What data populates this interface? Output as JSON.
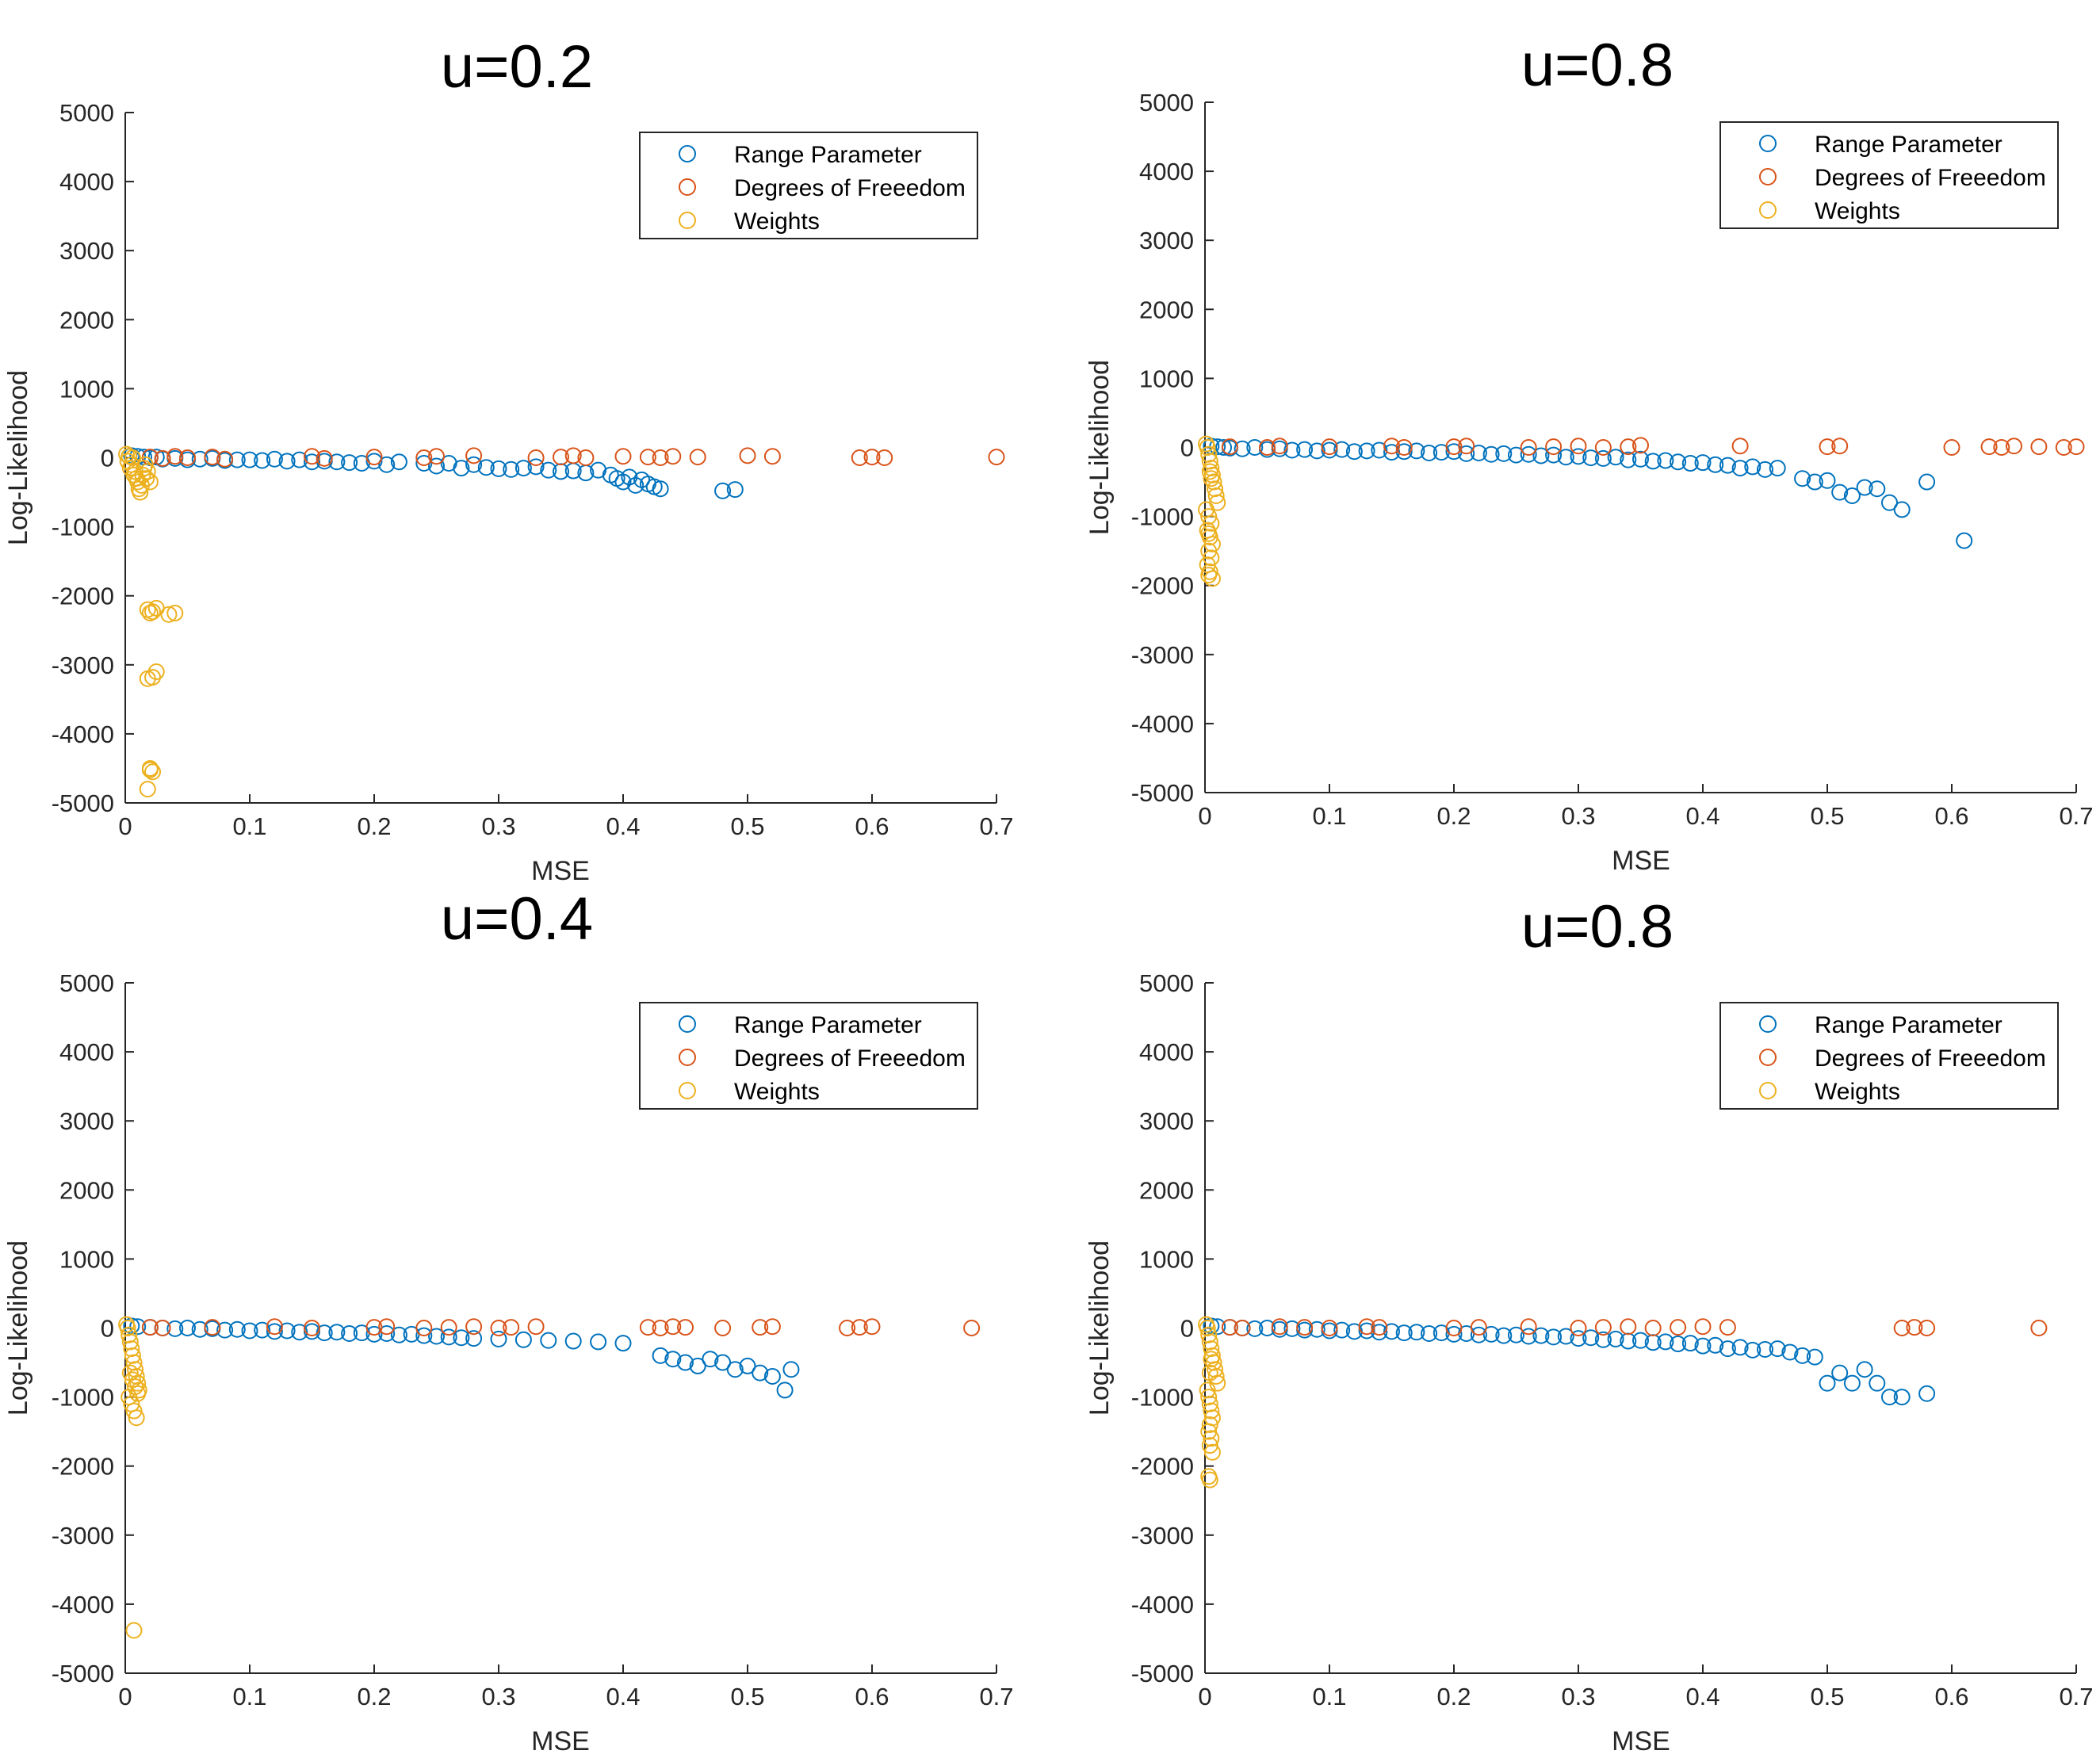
{
  "colors": {
    "range": "#0072BD",
    "dof": "#D95319",
    "weights": "#EDB120",
    "axis": "#262626"
  },
  "chart_data": [
    {
      "type": "scatter",
      "title": "u=0.2",
      "xlabel": "MSE",
      "ylabel": "Log-Likelihood",
      "xlim": [
        0,
        0.7
      ],
      "ylim": [
        -5000,
        5000
      ],
      "xticks": [
        "0",
        "0.1",
        "0.2",
        "0.3",
        "0.4",
        "0.5",
        "0.6",
        "0.7"
      ],
      "yticks": [
        "5000",
        "4000",
        "3000",
        "2000",
        "1000",
        "0",
        "-1000",
        "-2000",
        "-3000",
        "-4000",
        "-5000"
      ],
      "legend": [
        "Range Parameter",
        "Degrees of Freeedom",
        "Weights"
      ],
      "legend_position": "top-right",
      "series": [
        {
          "name": "Range Parameter",
          "x": [
            0.005,
            0.01,
            0.015,
            0.02,
            0.025,
            0.03,
            0.04,
            0.05,
            0.06,
            0.07,
            0.08,
            0.09,
            0.1,
            0.11,
            0.12,
            0.13,
            0.14,
            0.15,
            0.16,
            0.17,
            0.18,
            0.19,
            0.2,
            0.21,
            0.22,
            0.24,
            0.25,
            0.26,
            0.27,
            0.28,
            0.29,
            0.3,
            0.31,
            0.32,
            0.33,
            0.34,
            0.35,
            0.36,
            0.37,
            0.38,
            0.39,
            0.395,
            0.4,
            0.405,
            0.41,
            0.415,
            0.42,
            0.425,
            0.43,
            0.48,
            0.49
          ],
          "y": [
            30,
            20,
            10,
            0,
            10,
            -20,
            -10,
            -30,
            -20,
            -10,
            -40,
            -30,
            -30,
            -40,
            -20,
            -50,
            -30,
            -60,
            -50,
            -60,
            -70,
            -80,
            -50,
            -100,
            -60,
            -80,
            -120,
            -80,
            -150,
            -100,
            -140,
            -160,
            -170,
            -150,
            -130,
            -180,
            -200,
            -190,
            -220,
            -180,
            -250,
            -300,
            -350,
            -280,
            -400,
            -320,
            -380,
            -420,
            -450,
            -480,
            -460
          ]
        },
        {
          "name": "Degrees of Freeedom",
          "x": [
            0.02,
            0.03,
            0.04,
            0.05,
            0.07,
            0.08,
            0.15,
            0.16,
            0.2,
            0.24,
            0.25,
            0.28,
            0.33,
            0.35,
            0.36,
            0.37,
            0.4,
            0.42,
            0.43,
            0.44,
            0.46,
            0.5,
            0.52,
            0.59,
            0.6,
            0.61,
            0.7
          ],
          "y": [
            10,
            -10,
            20,
            0,
            10,
            -20,
            20,
            -10,
            10,
            0,
            20,
            30,
            0,
            10,
            30,
            0,
            20,
            10,
            0,
            20,
            10,
            30,
            20,
            0,
            10,
            0,
            10
          ]
        },
        {
          "name": "Weights",
          "x": [
            0.001,
            0.002,
            0.003,
            0.004,
            0.005,
            0.006,
            0.007,
            0.008,
            0.009,
            0.01,
            0.011,
            0.012,
            0.013,
            0.014,
            0.015,
            0.016,
            0.017,
            0.018,
            0.02,
            0.018,
            0.022,
            0.02,
            0.025,
            0.035,
            0.04,
            0.018,
            0.022,
            0.025,
            0.02,
            0.022,
            0.018,
            0.02
          ],
          "y": [
            50,
            -50,
            20,
            -150,
            -100,
            0,
            -250,
            -200,
            -300,
            -350,
            -450,
            -500,
            -400,
            -250,
            -150,
            -100,
            -300,
            -200,
            -350,
            -2200,
            -2230,
            -2250,
            -2180,
            -2270,
            -2250,
            -3200,
            -3180,
            -3100,
            -4500,
            -4550,
            -4800,
            -4520
          ]
        }
      ]
    },
    {
      "type": "scatter",
      "title": "u=0.8",
      "xlabel": "MSE",
      "ylabel": "Log-Likelihood",
      "xlim": [
        0,
        0.7
      ],
      "ylim": [
        -5000,
        5000
      ],
      "xticks": [
        "0",
        "0.1",
        "0.2",
        "0.3",
        "0.4",
        "0.5",
        "0.6",
        "0.7"
      ],
      "yticks": [
        "5000",
        "4000",
        "3000",
        "2000",
        "1000",
        "0",
        "-1000",
        "-2000",
        "-3000",
        "-4000",
        "-5000"
      ],
      "legend": [
        "Range Parameter",
        "Degrees of Freeedom",
        "Weights"
      ],
      "legend_position": "top-right",
      "series": [
        {
          "name": "Range Parameter",
          "x": [
            0.005,
            0.01,
            0.015,
            0.02,
            0.03,
            0.04,
            0.05,
            0.06,
            0.07,
            0.08,
            0.09,
            0.1,
            0.11,
            0.12,
            0.13,
            0.14,
            0.15,
            0.16,
            0.17,
            0.18,
            0.19,
            0.2,
            0.21,
            0.22,
            0.23,
            0.24,
            0.25,
            0.26,
            0.27,
            0.28,
            0.29,
            0.3,
            0.31,
            0.32,
            0.33,
            0.34,
            0.35,
            0.36,
            0.37,
            0.38,
            0.39,
            0.4,
            0.41,
            0.42,
            0.43,
            0.44,
            0.45,
            0.46,
            0.48,
            0.49,
            0.5,
            0.51,
            0.52,
            0.53,
            0.54,
            0.55,
            0.56,
            0.58,
            0.61
          ],
          "y": [
            20,
            10,
            0,
            -10,
            -20,
            0,
            -30,
            -20,
            -40,
            -30,
            -50,
            -40,
            -30,
            -60,
            -50,
            -40,
            -70,
            -60,
            -50,
            -80,
            -70,
            -60,
            -90,
            -80,
            -100,
            -90,
            -110,
            -100,
            -120,
            -110,
            -140,
            -130,
            -150,
            -160,
            -140,
            -180,
            -170,
            -200,
            -190,
            -210,
            -230,
            -220,
            -250,
            -260,
            -300,
            -280,
            -320,
            -300,
            -450,
            -500,
            -480,
            -650,
            -700,
            -580,
            -600,
            -800,
            -900,
            -500,
            -1350
          ]
        },
        {
          "name": "Degrees of Freeedom",
          "x": [
            0.02,
            0.05,
            0.06,
            0.1,
            0.15,
            0.16,
            0.2,
            0.21,
            0.26,
            0.28,
            0.3,
            0.32,
            0.34,
            0.35,
            0.43,
            0.5,
            0.51,
            0.6,
            0.63,
            0.64,
            0.65,
            0.67,
            0.69,
            0.7
          ],
          "y": [
            10,
            0,
            20,
            10,
            20,
            0,
            10,
            20,
            0,
            10,
            20,
            0,
            10,
            30,
            20,
            10,
            20,
            0,
            10,
            0,
            20,
            10,
            0,
            10
          ]
        },
        {
          "name": "Weights",
          "x": [
            0.001,
            0.002,
            0.003,
            0.004,
            0.005,
            0.006,
            0.007,
            0.008,
            0.009,
            0.01,
            0.001,
            0.003,
            0.005,
            0.002,
            0.004,
            0.006,
            0.003,
            0.005,
            0.002,
            0.004,
            0.006,
            0.003,
            0.004,
            0.005,
            0.003
          ],
          "y": [
            50,
            0,
            -100,
            -200,
            -300,
            -400,
            -500,
            -600,
            -700,
            -800,
            -900,
            -1000,
            -1100,
            -1200,
            -1300,
            -1400,
            -1500,
            -1600,
            -1700,
            -1800,
            -1900,
            -1850,
            -350,
            -450,
            -1250
          ]
        }
      ]
    },
    {
      "type": "scatter",
      "title": "u=0.4",
      "xlabel": "MSE",
      "ylabel": "Log-Likelihood",
      "xlim": [
        0,
        0.7
      ],
      "ylim": [
        -5000,
        5000
      ],
      "xticks": [
        "0",
        "0.1",
        "0.2",
        "0.3",
        "0.4",
        "0.5",
        "0.6",
        "0.7"
      ],
      "yticks": [
        "5000",
        "4000",
        "3000",
        "2000",
        "1000",
        "0",
        "-1000",
        "-2000",
        "-3000",
        "-4000",
        "-5000"
      ],
      "legend": [
        "Range Parameter",
        "Degrees of Freeedom",
        "Weights"
      ],
      "legend_position": "top-right",
      "series": [
        {
          "name": "Range Parameter",
          "x": [
            0.005,
            0.01,
            0.02,
            0.03,
            0.04,
            0.05,
            0.06,
            0.07,
            0.08,
            0.09,
            0.1,
            0.11,
            0.12,
            0.13,
            0.14,
            0.15,
            0.16,
            0.17,
            0.18,
            0.19,
            0.2,
            0.21,
            0.22,
            0.23,
            0.24,
            0.25,
            0.26,
            0.27,
            0.28,
            0.3,
            0.32,
            0.34,
            0.36,
            0.38,
            0.4,
            0.43,
            0.44,
            0.45,
            0.46,
            0.47,
            0.48,
            0.49,
            0.5,
            0.51,
            0.52,
            0.53,
            0.535
          ],
          "y": [
            30,
            20,
            10,
            0,
            -10,
            0,
            -20,
            -10,
            -30,
            -20,
            -40,
            -30,
            -50,
            -40,
            -60,
            -50,
            -70,
            -60,
            -80,
            -70,
            -90,
            -80,
            -100,
            -90,
            -110,
            -120,
            -130,
            -140,
            -150,
            -160,
            -170,
            -180,
            -190,
            -200,
            -220,
            -400,
            -450,
            -500,
            -550,
            -450,
            -500,
            -600,
            -550,
            -650,
            -700,
            -900,
            -600
          ]
        },
        {
          "name": "Degrees of Freeedom",
          "x": [
            0.02,
            0.03,
            0.07,
            0.12,
            0.15,
            0.2,
            0.21,
            0.24,
            0.26,
            0.28,
            0.3,
            0.31,
            0.33,
            0.42,
            0.43,
            0.44,
            0.45,
            0.48,
            0.51,
            0.52,
            0.58,
            0.59,
            0.6,
            0.68
          ],
          "y": [
            10,
            0,
            10,
            20,
            0,
            10,
            20,
            0,
            10,
            20,
            0,
            10,
            20,
            10,
            0,
            20,
            10,
            0,
            10,
            20,
            0,
            10,
            20,
            0
          ]
        },
        {
          "name": "Weights",
          "x": [
            0.001,
            0.002,
            0.003,
            0.004,
            0.005,
            0.006,
            0.007,
            0.008,
            0.009,
            0.01,
            0.011,
            0.003,
            0.005,
            0.007,
            0.009,
            0.004,
            0.006,
            0.008,
            0.01,
            0.007
          ],
          "y": [
            50,
            0,
            -100,
            -200,
            -300,
            -400,
            -500,
            -600,
            -700,
            -800,
            -900,
            -1000,
            -1100,
            -1200,
            -1300,
            -650,
            -750,
            -850,
            -950,
            -4380
          ]
        }
      ]
    },
    {
      "type": "scatter",
      "title": "u=0.8",
      "xlabel": "MSE",
      "ylabel": "Log-Likelihood",
      "xlim": [
        0,
        0.7
      ],
      "ylim": [
        -5000,
        5000
      ],
      "xticks": [
        "0",
        "0.1",
        "0.2",
        "0.3",
        "0.4",
        "0.5",
        "0.6",
        "0.7"
      ],
      "yticks": [
        "5000",
        "4000",
        "3000",
        "2000",
        "1000",
        "0",
        "-1000",
        "-2000",
        "-3000",
        "-4000",
        "-5000"
      ],
      "legend": [
        "Range Parameter",
        "Degrees of Freeedom",
        "Weights"
      ],
      "legend_position": "top-right",
      "series": [
        {
          "name": "Range Parameter",
          "x": [
            0.005,
            0.01,
            0.02,
            0.03,
            0.04,
            0.05,
            0.06,
            0.07,
            0.08,
            0.09,
            0.1,
            0.11,
            0.12,
            0.13,
            0.14,
            0.15,
            0.16,
            0.17,
            0.18,
            0.19,
            0.2,
            0.21,
            0.22,
            0.23,
            0.24,
            0.25,
            0.26,
            0.27,
            0.28,
            0.29,
            0.3,
            0.31,
            0.32,
            0.33,
            0.34,
            0.35,
            0.36,
            0.37,
            0.38,
            0.39,
            0.4,
            0.41,
            0.42,
            0.43,
            0.44,
            0.45,
            0.46,
            0.47,
            0.48,
            0.49,
            0.5,
            0.51,
            0.52,
            0.53,
            0.54,
            0.55,
            0.56,
            0.58
          ],
          "y": [
            30,
            20,
            10,
            0,
            -10,
            0,
            -20,
            -10,
            -30,
            -20,
            -40,
            -30,
            -50,
            -40,
            -60,
            -50,
            -70,
            -60,
            -80,
            -70,
            -90,
            -80,
            -100,
            -90,
            -110,
            -100,
            -120,
            -110,
            -130,
            -120,
            -150,
            -140,
            -170,
            -160,
            -190,
            -180,
            -210,
            -200,
            -230,
            -220,
            -260,
            -250,
            -300,
            -280,
            -320,
            -310,
            -300,
            -350,
            -400,
            -420,
            -800,
            -650,
            -800,
            -600,
            -800,
            -1000,
            -1000,
            -950
          ]
        },
        {
          "name": "Degrees of Freeedom",
          "x": [
            0.02,
            0.03,
            0.06,
            0.08,
            0.1,
            0.13,
            0.14,
            0.2,
            0.22,
            0.26,
            0.3,
            0.32,
            0.34,
            0.36,
            0.38,
            0.4,
            0.42,
            0.56,
            0.57,
            0.58,
            0.67
          ],
          "y": [
            10,
            0,
            20,
            10,
            0,
            20,
            10,
            0,
            10,
            20,
            0,
            10,
            20,
            0,
            10,
            20,
            10,
            0,
            10,
            0,
            0
          ]
        },
        {
          "name": "Weights",
          "x": [
            0.001,
            0.002,
            0.003,
            0.004,
            0.005,
            0.006,
            0.007,
            0.008,
            0.009,
            0.01,
            0.002,
            0.003,
            0.004,
            0.005,
            0.006,
            0.004,
            0.003,
            0.005,
            0.004,
            0.006,
            0.003,
            0.004,
            0.005,
            0.004
          ],
          "y": [
            50,
            0,
            -100,
            -200,
            -300,
            -400,
            -500,
            -600,
            -700,
            -800,
            -900,
            -1000,
            -1100,
            -1200,
            -1300,
            -1400,
            -1500,
            -1600,
            -1700,
            -1800,
            -2150,
            -2200,
            -450,
            -650
          ]
        }
      ]
    }
  ]
}
